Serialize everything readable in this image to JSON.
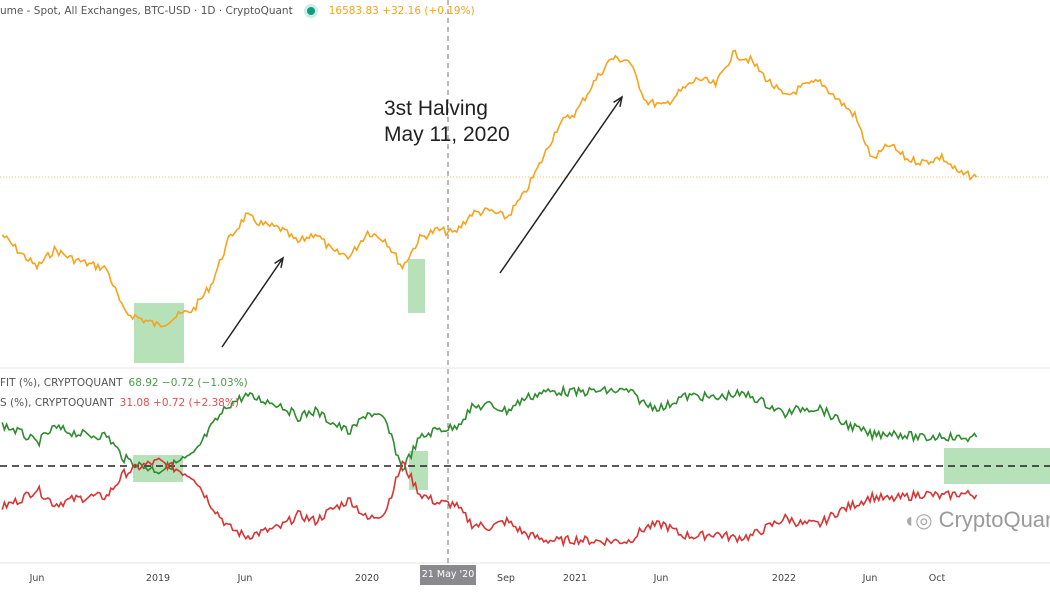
{
  "header": {
    "title": "ume - Spot, All Exchanges, BTC-USD · 1D · CryptoQuant",
    "price_readout": "16583.83 +32.16 (+0.19%)",
    "live_dot_color": "#139b7d"
  },
  "lower_pane": {
    "profit_legend": "FIT (%), CRYPTOQUANT",
    "profit_readout": "68.92 −0.72 (−1.03%)",
    "loss_legend": "S (%), CRYPTOQUANT",
    "loss_readout": "31.08 +0.72 (+2.38%)"
  },
  "annotation": {
    "text": "3st Halving\nMay 11, 2020"
  },
  "watermark": "CryptoQuant",
  "cursor_label": "21 May '20",
  "chart_data": [
    {
      "type": "line",
      "scale": "log",
      "title": "",
      "x": [
        "2018-04",
        "2018-05",
        "2018-06",
        "2018-07",
        "2018-08",
        "2018-09",
        "2018-10",
        "2018-11",
        "2018-12",
        "2019-01",
        "2019-02",
        "2019-03",
        "2019-04",
        "2019-05",
        "2019-06",
        "2019-07",
        "2019-08",
        "2019-09",
        "2019-10",
        "2019-11",
        "2019-12",
        "2020-01",
        "2020-02",
        "2020-03",
        "2020-04",
        "2020-05",
        "2020-06",
        "2020-07",
        "2020-08",
        "2020-09",
        "2020-10",
        "2020-11",
        "2020-12",
        "2021-01",
        "2021-02",
        "2021-03",
        "2021-04",
        "2021-05",
        "2021-06",
        "2021-07",
        "2021-08",
        "2021-09",
        "2021-10",
        "2021-11",
        "2021-12",
        "2022-01",
        "2022-02",
        "2022-03",
        "2022-04",
        "2022-05",
        "2022-06",
        "2022-07",
        "2022-08",
        "2022-09",
        "2022-10",
        "2022-11",
        "2022-12"
      ],
      "series": [
        {
          "color": "#f7a31c",
          "values": [
            9000,
            7500,
            6400,
            7700,
            7000,
            6600,
            6300,
            4000,
            3700,
            3450,
            3800,
            4100,
            5300,
            8500,
            11000,
            10000,
            9600,
            8300,
            9200,
            7500,
            7200,
            9300,
            8600,
            6400,
            8700,
            9500,
            9150,
            11300,
            11600,
            10800,
            13800,
            19700,
            29000,
            33000,
            45000,
            58000,
            57000,
            37000,
            35000,
            41000,
            47000,
            43800,
            61000,
            57000,
            46000,
            38500,
            43000,
            45500,
            37700,
            31800,
            19900,
            23300,
            20000,
            19400,
            20500,
            17200,
            16583.83
          ]
        }
      ],
      "last_value_line": 16583.83,
      "highlight_periods": [
        [
          "2018-11",
          "2019-02"
        ],
        [
          "2020-03",
          "2020-03"
        ]
      ],
      "vertical_marker": "2020-05-11"
    },
    {
      "type": "line",
      "title": "",
      "x_ticks": [
        "Jun",
        "2019",
        "Jun",
        "2020",
        "Sep",
        "2021",
        "Jun",
        "2022",
        "Jun",
        "Oct"
      ],
      "reference_line": 50,
      "series": [
        {
          "color": "#2e8b2e",
          "values": [
            77,
            72,
            65,
            75,
            72,
            70,
            70,
            55,
            50,
            47,
            52,
            57,
            75,
            90,
            96,
            93,
            90,
            82,
            86,
            78,
            72,
            85,
            80,
            48,
            68,
            74,
            75,
            88,
            90,
            86,
            94,
            98,
            99,
            98,
            99,
            99,
            99,
            90,
            88,
            95,
            96,
            94,
            97,
            96,
            90,
            84,
            88,
            88,
            80,
            75,
            70,
            72,
            70,
            68,
            70,
            68,
            68.92
          ]
        },
        {
          "color": "#d93434",
          "values": [
            23,
            28,
            35,
            25,
            28,
            30,
            30,
            45,
            50,
            53,
            48,
            43,
            25,
            10,
            4,
            7,
            10,
            18,
            14,
            22,
            28,
            15,
            20,
            52,
            32,
            26,
            25,
            12,
            10,
            14,
            6,
            2,
            1,
            2,
            1,
            1,
            1,
            10,
            12,
            5,
            4,
            6,
            3,
            4,
            10,
            16,
            12,
            12,
            20,
            25,
            30,
            28,
            30,
            32,
            30,
            32,
            31.08
          ]
        }
      ],
      "highlight_periods": [
        [
          "2018-11",
          "2019-02"
        ],
        [
          "2020-03",
          "2020-04"
        ],
        [
          "2022-10",
          "2022-12"
        ]
      ]
    }
  ]
}
